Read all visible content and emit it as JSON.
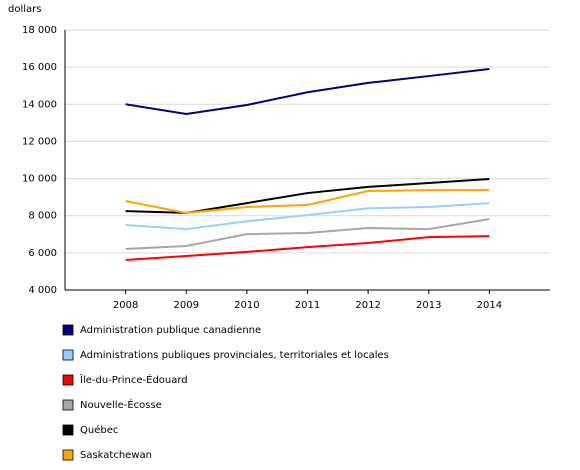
{
  "chart_data": {
    "type": "line",
    "y_label": "dollars",
    "categories": [
      "2008",
      "2009",
      "2010",
      "2011",
      "2012",
      "2013",
      "2014"
    ],
    "ylim": [
      4000,
      18000
    ],
    "yticks": [
      {
        "value": 4000,
        "label": "4 000"
      },
      {
        "value": 6000,
        "label": "6 000"
      },
      {
        "value": 8000,
        "label": "8 000"
      },
      {
        "value": 10000,
        "label": "10 000"
      },
      {
        "value": 12000,
        "label": "12 000"
      },
      {
        "value": 14000,
        "label": "14 000"
      },
      {
        "value": 16000,
        "label": "16 000"
      },
      {
        "value": 18000,
        "label": "18 000"
      }
    ],
    "grid": true,
    "series": [
      {
        "name": "Administration publique canadienne",
        "color": "#000080",
        "values": [
          14000,
          13480,
          13960,
          14650,
          15150,
          15520,
          15900
        ]
      },
      {
        "name": "Administrations publiques provinciales, territoriales et locales",
        "color": "#99ccff",
        "values": [
          7500,
          7280,
          7700,
          8030,
          8400,
          8470,
          8680
        ]
      },
      {
        "name": "Île-du-Prince-Édouard",
        "color": "#ff0000",
        "values": [
          5620,
          5830,
          6050,
          6310,
          6530,
          6850,
          6900
        ]
      },
      {
        "name": "Nouvelle-Écosse",
        "color": "#a6a6a6",
        "values": [
          6210,
          6370,
          7010,
          7070,
          7340,
          7280,
          7820
        ]
      },
      {
        "name": "Québec",
        "color": "#000000",
        "values": [
          8250,
          8150,
          8680,
          9220,
          9550,
          9760,
          9980
        ]
      },
      {
        "name": "Saskatchewan",
        "color": "#ffa500",
        "values": [
          8790,
          8150,
          8470,
          8580,
          9330,
          9380,
          9380
        ]
      }
    ]
  }
}
